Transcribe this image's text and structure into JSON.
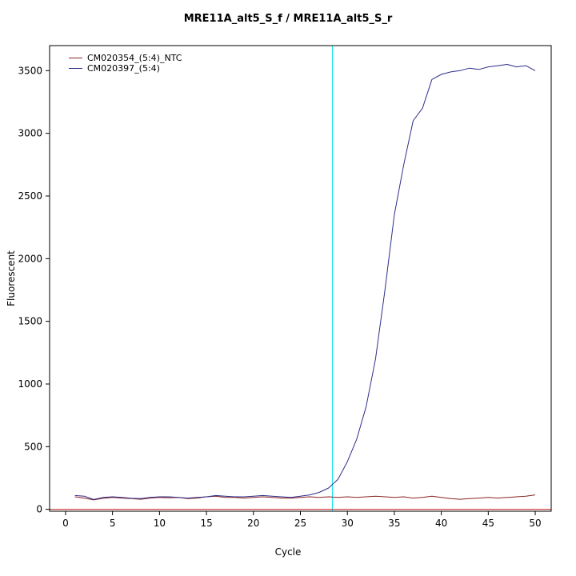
{
  "title": "MRE11A_alt5_S_f / MRE11A_alt5_S_r",
  "chart_data": {
    "type": "line",
    "title": "MRE11A_alt5_S_f / MRE11A_alt5_S_r",
    "xlabel": "Cycle",
    "ylabel": "Fluorescent",
    "xlim": [
      -1.7,
      51.7
    ],
    "ylim": [
      -15,
      3700
    ],
    "x_ticks": [
      0,
      5,
      10,
      15,
      20,
      25,
      30,
      35,
      40,
      45,
      50
    ],
    "y_ticks": [
      0,
      500,
      1000,
      1500,
      2000,
      2500,
      3000,
      3500
    ],
    "grid": false,
    "legend_position": "top-left",
    "threshold_line": {
      "y": 0,
      "color": "#cd2626"
    },
    "ct_line": {
      "x": 28.4,
      "color": "#00e5ee"
    },
    "x": [
      1,
      2,
      3,
      4,
      5,
      6,
      7,
      8,
      9,
      10,
      11,
      12,
      13,
      14,
      15,
      16,
      17,
      18,
      19,
      20,
      21,
      22,
      23,
      24,
      25,
      26,
      27,
      28,
      29,
      30,
      31,
      32,
      33,
      34,
      35,
      36,
      37,
      38,
      39,
      40,
      41,
      42,
      43,
      44,
      45,
      46,
      47,
      48,
      49,
      50
    ],
    "series": [
      {
        "name": "CM020354_(5:4)_NTC",
        "color": "#8b2323",
        "values": [
          100,
          90,
          75,
          88,
          95,
          90,
          85,
          80,
          90,
          95,
          92,
          95,
          85,
          90,
          100,
          105,
          95,
          95,
          90,
          95,
          100,
          95,
          90,
          90,
          95,
          100,
          95,
          100,
          95,
          100,
          95,
          100,
          105,
          100,
          95,
          100,
          90,
          95,
          105,
          95,
          85,
          80,
          85,
          90,
          95,
          90,
          95,
          100,
          105,
          115
        ]
      },
      {
        "name": "CM020397_(5:4)",
        "color": "#2e2e8b",
        "values": [
          110,
          105,
          78,
          95,
          100,
          95,
          88,
          85,
          95,
          100,
          100,
          95,
          90,
          95,
          100,
          110,
          105,
          100,
          100,
          105,
          110,
          105,
          100,
          95,
          105,
          115,
          135,
          170,
          240,
          380,
          560,
          820,
          1200,
          1750,
          2350,
          2750,
          3100,
          3200,
          3430,
          3470,
          3490,
          3500,
          3520,
          3510,
          3530,
          3540,
          3550,
          3530,
          3540,
          3500
        ]
      }
    ]
  }
}
